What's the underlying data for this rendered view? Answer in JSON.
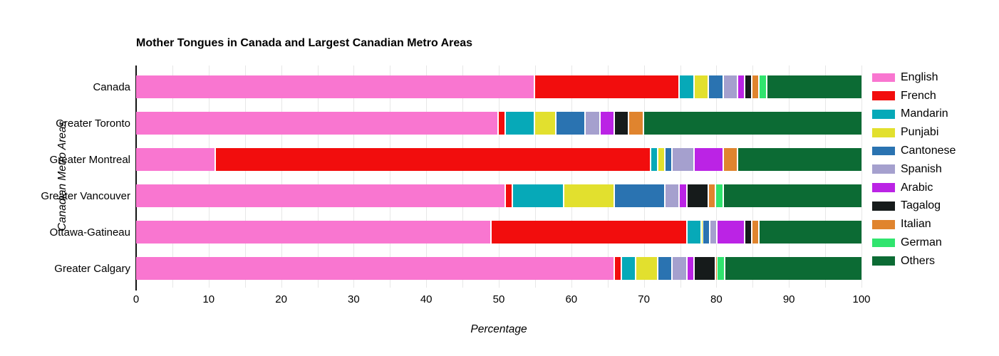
{
  "chart_data": {
    "type": "bar",
    "orientation": "horizontal",
    "stacked": true,
    "title": "Mother Tongues in Canada and Largest Canadian Metro Areas",
    "xlabel": "Percentage",
    "ylabel": "Canadian Metro Areas",
    "xlim": [
      0,
      100
    ],
    "xticks": [
      0,
      10,
      20,
      30,
      40,
      50,
      60,
      70,
      80,
      90,
      100
    ],
    "grid_step": 5,
    "grid_on": true,
    "legend_position": "right",
    "categories": [
      "Canada",
      "Greater Toronto",
      "Greater Montreal",
      "Greater Vancouver",
      "Ottawa-Gatineau",
      "Greater Calgary"
    ],
    "series": [
      {
        "name": "English",
        "color": "#F976D0",
        "values": [
          55,
          50,
          11,
          51,
          49,
          66
        ]
      },
      {
        "name": "French",
        "color": "#F20D0D",
        "values": [
          20,
          1,
          60,
          1,
          27,
          1
        ]
      },
      {
        "name": "Mandarin",
        "color": "#06A9B8",
        "values": [
          2,
          4,
          1,
          7,
          2,
          2
        ]
      },
      {
        "name": "Punjabi",
        "color": "#E2E02E",
        "values": [
          2,
          3,
          1,
          7,
          0.2,
          3
        ]
      },
      {
        "name": "Cantonese",
        "color": "#2A73B1",
        "values": [
          2,
          4,
          1,
          7,
          1,
          2
        ]
      },
      {
        "name": "Spanish",
        "color": "#A5A0CE",
        "values": [
          2,
          2,
          3,
          2,
          1,
          2
        ]
      },
      {
        "name": "Arabic",
        "color": "#BB23E5",
        "values": [
          1,
          2,
          4,
          1,
          3.8,
          1
        ]
      },
      {
        "name": "Tagalog",
        "color": "#161B1B",
        "values": [
          1,
          2,
          0,
          3,
          1,
          3
        ]
      },
      {
        "name": "Italian",
        "color": "#E0842E",
        "values": [
          1,
          2,
          2,
          1,
          1,
          0.2
        ]
      },
      {
        "name": "German",
        "color": "#30E46E",
        "values": [
          1,
          0,
          0,
          1,
          0,
          1
        ]
      },
      {
        "name": "Others",
        "color": "#0C6B34",
        "values": [
          13,
          30,
          17,
          19,
          14,
          18.8
        ]
      }
    ]
  },
  "colors": {
    "background": "#FFFFFF",
    "gridline": "#E7E7E7",
    "axis_line": "#111111",
    "text": "#000000"
  }
}
